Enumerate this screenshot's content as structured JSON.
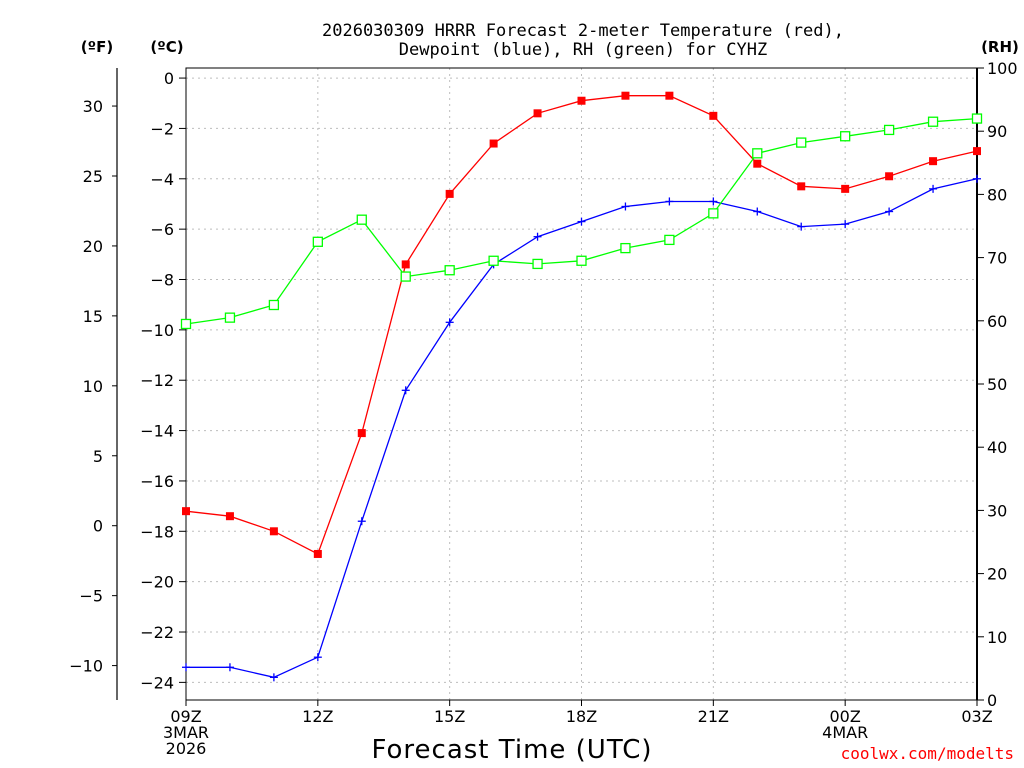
{
  "chart_data": {
    "type": "line",
    "title_lines": [
      "2026030309 HRRR Forecast 2-meter Temperature (red),",
      "Dewpoint (blue), RH (green) for CYHZ"
    ],
    "xlabel": "Forecast Time (UTC)",
    "credit": "coolwx.com/modelts",
    "units": {
      "f": "(ºF)",
      "c": "(ºC)",
      "rh": "(RH)"
    },
    "x_hours": [
      0,
      1,
      2,
      3,
      4,
      5,
      6,
      7,
      8,
      9,
      10,
      11,
      12,
      13,
      14,
      15,
      16,
      17,
      18
    ],
    "xlim": [
      0,
      18
    ],
    "x_ticks": [
      {
        "hour": 0,
        "lines": [
          "09Z",
          "3MAR",
          "2026"
        ]
      },
      {
        "hour": 3,
        "lines": [
          "12Z"
        ]
      },
      {
        "hour": 6,
        "lines": [
          "15Z"
        ]
      },
      {
        "hour": 9,
        "lines": [
          "18Z"
        ]
      },
      {
        "hour": 12,
        "lines": [
          "21Z"
        ]
      },
      {
        "hour": 15,
        "lines": [
          "00Z",
          "4MAR"
        ]
      },
      {
        "hour": 18,
        "lines": [
          "03Z"
        ]
      }
    ],
    "c_axis": {
      "ylim": [
        -24.7,
        0.4
      ],
      "ticks": [
        0,
        -2,
        -4,
        -6,
        -8,
        -10,
        -12,
        -14,
        -16,
        -18,
        -20,
        -22,
        -24
      ],
      "tick_labels": [
        "0",
        "−2",
        "−4",
        "−6",
        "−8",
        "−10",
        "−12",
        "−14",
        "−16",
        "−18",
        "−20",
        "−22",
        "−24"
      ]
    },
    "f_axis": {
      "ticks": [
        30,
        25,
        20,
        15,
        10,
        5,
        0,
        -5,
        -10
      ],
      "tick_labels": [
        "30",
        "25",
        "20",
        "15",
        "10",
        "5",
        "0",
        "−5",
        "−10"
      ]
    },
    "rh_axis": {
      "ylim": [
        0,
        100
      ],
      "ticks": [
        100,
        90,
        80,
        70,
        60,
        50,
        40,
        30,
        20,
        10,
        0
      ],
      "tick_labels": [
        "100",
        "90",
        "80",
        "70",
        "60",
        "50",
        "40",
        "30",
        "20",
        "10",
        "0"
      ]
    },
    "series": [
      {
        "name": "Temperature (°C)",
        "color": "#ff0000",
        "marker": "filled-square",
        "axis": "c",
        "values": [
          -17.2,
          -17.4,
          -18.0,
          -18.9,
          -14.1,
          -7.4,
          -4.6,
          -2.6,
          -1.4,
          -0.9,
          -0.7,
          -0.7,
          -1.5,
          -3.4,
          -4.3,
          -4.4,
          -3.9,
          -3.3,
          -2.9
        ]
      },
      {
        "name": "Dewpoint (°C)",
        "color": "#0000ff",
        "marker": "plus",
        "axis": "c",
        "values": [
          -23.4,
          -23.4,
          -23.8,
          -23.0,
          -17.6,
          -12.4,
          -9.7,
          -7.4,
          -6.3,
          -5.7,
          -5.1,
          -4.9,
          -4.9,
          -5.3,
          -5.9,
          -5.8,
          -5.3,
          -4.4,
          -4.0
        ]
      },
      {
        "name": "RH (%)",
        "color": "#00ff00",
        "marker": "open-square",
        "axis": "rh",
        "values": [
          59.5,
          60.5,
          62.5,
          72.5,
          76.0,
          67.0,
          68.0,
          69.5,
          69.0,
          69.5,
          71.5,
          72.8,
          77.0,
          86.5,
          88.2,
          89.2,
          90.2,
          91.5,
          92.0
        ]
      }
    ]
  }
}
